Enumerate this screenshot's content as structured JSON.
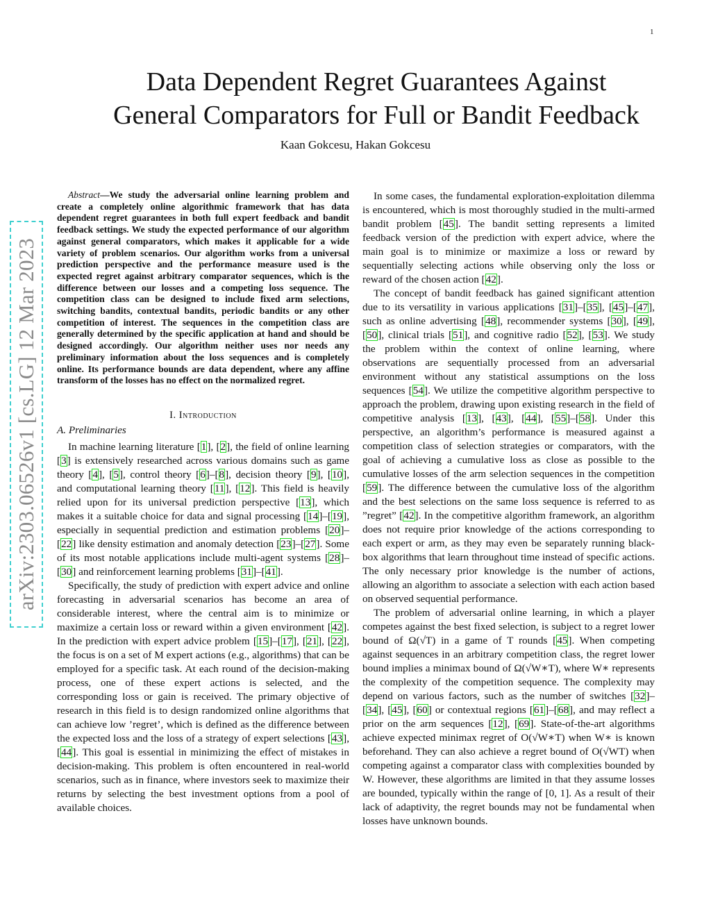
{
  "page_number": "1",
  "arxiv_stamp": "arXiv:2303.06526v1  [cs.LG]  12 Mar 2023",
  "title_line1": "Data Dependent Regret Guarantees Against",
  "title_line2": "General Comparators for Full or Bandit Feedback",
  "authors": "Kaan Gokcesu, Hakan Gokcesu",
  "abstract": {
    "label": "Abstract",
    "text": "—We study the adversarial online learning problem and create a completely online algorithmic framework that has data dependent regret guarantees in both full expert feedback and bandit feedback settings. We study the expected performance of our algorithm against general comparators, which makes it applicable for a wide variety of problem scenarios. Our algorithm works from a universal prediction perspective and the performance measure used is the expected regret against arbitrary comparator sequences, which is the difference between our losses and a competing loss sequence. The competition class can be designed to include fixed arm selections, switching bandits, contextual bandits, periodic bandits or any other competition of interest. The sequences in the competition class are generally determined by the specific application at hand and should be designed accordingly. Our algorithm neither uses nor needs any preliminary information about the loss sequences and is completely online. Its performance bounds are data dependent, where any affine transform of the losses has no effect on the normalized regret."
  },
  "section": {
    "numeral": "I. ",
    "title": "Introduction"
  },
  "subsection": "A. Preliminaries",
  "left_paragraphs": [
    "In machine learning literature [1], [2], the field of online learning [3] is extensively researched across various domains such as game theory [4], [5], control theory [6]–[8], decision theory [9], [10], and computational learning theory [11], [12]. This field is heavily relied upon for its universal prediction perspective [13], which makes it a suitable choice for data and signal processing [14]–[19], especially in sequential prediction and estimation problems [20]–[22] like density estimation and anomaly detection [23]–[27]. Some of its most notable applications include multi-agent systems [28]–[30] and reinforcement learning problems [31]–[41].",
    "Specifically, the study of prediction with expert advice and online forecasting in adversarial scenarios has become an area of considerable interest, where the central aim is to minimize or maximize a certain loss or reward within a given environment [42]. In the prediction with expert advice problem [15]–[17], [21], [22], the focus is on a set of M expert actions (e.g., algorithms) that can be employed for a specific task. At each round of the decision-making process, one of these expert actions is selected, and the corresponding loss or gain is received. The primary objective of research in this field is to design randomized online algorithms that can achieve low ’regret’, which is defined as the difference between the expected loss and the loss of a strategy of expert selections [43], [44]. This goal is essential in minimizing the effect of mistakes in decision-making. This problem is often encountered in real-world scenarios, such as in finance, where investors seek to maximize their returns by selecting the best investment options from a pool of available choices."
  ],
  "right_paragraphs": [
    "In some cases, the fundamental exploration-exploitation dilemma is encountered, which is most thoroughly studied in the multi-armed bandit problem [45]. The bandit setting represents a limited feedback version of the prediction with expert advice, where the main goal is to minimize or maximize a loss or reward by sequentially selecting actions while observing only the loss or reward of the chosen action [42].",
    "The concept of bandit feedback has gained significant attention due to its versatility in various applications [31]–[35], [45]–[47], such as online advertising [48], recommender systems [30], [49], [50], clinical trials [51], and cognitive radio [52], [53]. We study the problem within the context of online learning, where observations are sequentially processed from an adversarial environment without any statistical assumptions on the loss sequences [54]. We utilize the competitive algorithm perspective to approach the problem, drawing upon existing research in the field of competitive analysis [13], [43], [44], [55]–[58]. Under this perspective, an algorithm’s performance is measured against a competition class of selection strategies or comparators, with the goal of achieving a cumulative loss as close as possible to the cumulative losses of the arm selection sequences in the competition [59]. The difference between the cumulative loss of the algorithm and the best selections on the same loss sequence is referred to as ”regret” [42]. In the competitive algorithm framework, an algorithm does not require prior knowledge of the actions corresponding to each expert or arm, as they may even be separately running black-box algorithms that learn throughout time instead of specific actions. The only necessary prior knowledge is the number of actions, allowing an algorithm to associate a selection with each action based on observed sequential performance.",
    "The problem of adversarial online learning, in which a player competes against the best fixed selection, is subject to a regret lower bound of Ω(√T) in a game of T rounds [45]. When competing against sequences in an arbitrary competition class, the regret lower bound implies a minimax bound of Ω(√W∗T), where W∗ represents the complexity of the competition sequence. The complexity may depend on various factors, such as the number of switches [32]–[34], [45], [60] or contextual regions [61]–[68], and may reflect a prior on the arm sequences [12], [69]. State-of-the-art algorithms achieve expected minimax regret of O(√W∗T) when W∗ is known beforehand. They can also achieve a regret bound of O(√WT) when competing against a comparator class with complexities bounded by W. However, these algorithms are limited in that they assume losses are bounded, typically within the range of [0, 1]. As a result of their lack of adaptivity, the regret bounds may not be fundamental when losses have unknown bounds."
  ],
  "colors": {
    "citation_box": "#22dd22",
    "arxiv_border": "#3ecfcf",
    "arxiv_text": "#8a8a8a"
  }
}
